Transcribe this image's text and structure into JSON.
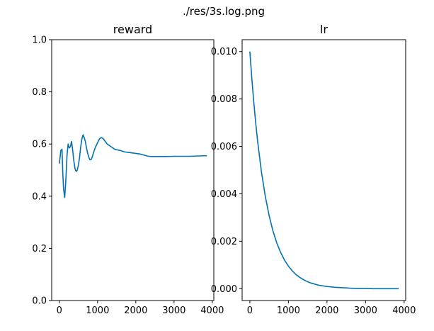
{
  "figure": {
    "suptitle": "./res/3s.log.png"
  },
  "colors": {
    "line": "#0072b2",
    "frame": "#000000",
    "background": "#ffffff"
  },
  "chart_data": [
    {
      "type": "line",
      "title": "reward",
      "xlabel": "",
      "ylabel": "",
      "xlim": [
        -200,
        4040
      ],
      "ylim": [
        0.0,
        1.0
      ],
      "xticks": [
        0,
        1000,
        2000,
        3000,
        4000
      ],
      "xtick_labels": [
        "0",
        "1000",
        "2000",
        "3000",
        "4000"
      ],
      "yticks": [
        0.0,
        0.2,
        0.4,
        0.6,
        0.8,
        1.0
      ],
      "ytick_labels": [
        "0.0",
        "0.2",
        "0.4",
        "0.6",
        "0.8",
        "1.0"
      ],
      "grid": false,
      "series": [
        {
          "name": "reward",
          "x": [
            0,
            40,
            70,
            90,
            110,
            140,
            170,
            200,
            230,
            260,
            290,
            320,
            350,
            380,
            410,
            440,
            470,
            500,
            530,
            560,
            590,
            620,
            650,
            680,
            710,
            740,
            770,
            800,
            830,
            860,
            900,
            950,
            1000,
            1050,
            1100,
            1150,
            1200,
            1250,
            1300,
            1350,
            1400,
            1450,
            1500,
            1600,
            1700,
            1800,
            1900,
            2000,
            2100,
            2200,
            2300,
            2400,
            2600,
            2800,
            3000,
            3200,
            3400,
            3600,
            3800,
            3860
          ],
          "y": [
            0.525,
            0.575,
            0.58,
            0.49,
            0.43,
            0.395,
            0.46,
            0.555,
            0.6,
            0.585,
            0.59,
            0.61,
            0.575,
            0.535,
            0.505,
            0.495,
            0.5,
            0.52,
            0.55,
            0.59,
            0.62,
            0.635,
            0.625,
            0.61,
            0.585,
            0.565,
            0.55,
            0.54,
            0.54,
            0.55,
            0.57,
            0.59,
            0.605,
            0.62,
            0.625,
            0.62,
            0.61,
            0.6,
            0.595,
            0.59,
            0.585,
            0.58,
            0.578,
            0.575,
            0.57,
            0.568,
            0.566,
            0.564,
            0.562,
            0.558,
            0.554,
            0.552,
            0.552,
            0.552,
            0.553,
            0.553,
            0.553,
            0.554,
            0.555,
            0.555
          ]
        }
      ]
    },
    {
      "type": "line",
      "title": "lr",
      "xlabel": "",
      "ylabel": "",
      "xlim": [
        -200,
        4040
      ],
      "ylim": [
        -0.0005,
        0.0105
      ],
      "xticks": [
        0,
        1000,
        2000,
        3000,
        4000
      ],
      "xtick_labels": [
        "0",
        "1000",
        "2000",
        "3000",
        "4000"
      ],
      "yticks": [
        0.0,
        0.002,
        0.004,
        0.006,
        0.008,
        0.01
      ],
      "ytick_labels": [
        "0.000",
        "0.002",
        "0.004",
        "0.006",
        "0.008",
        "0.010"
      ],
      "grid": false,
      "series": [
        {
          "name": "lr",
          "x": [
            0,
            50,
            100,
            150,
            200,
            300,
            400,
            500,
            600,
            700,
            800,
            900,
            1000,
            1100,
            1200,
            1300,
            1400,
            1500,
            1600,
            1800,
            2000,
            2200,
            2400,
            2600,
            2800,
            3000,
            3200,
            3400,
            3600,
            3800,
            3860
          ],
          "y": [
            0.01,
            0.00889,
            0.0079,
            0.00702,
            0.00624,
            0.00493,
            0.0039,
            0.00308,
            0.00243,
            0.00192,
            0.00152,
            0.0012,
            0.00095,
            0.00075,
            0.00059,
            0.00047,
            0.00037,
            0.00029,
            0.00023,
            0.00014,
            9e-05,
            6e-05,
            4e-05,
            2e-05,
            1e-05,
            1e-05,
            0.0,
            0.0,
            0.0,
            0.0,
            0.0
          ]
        }
      ]
    }
  ]
}
